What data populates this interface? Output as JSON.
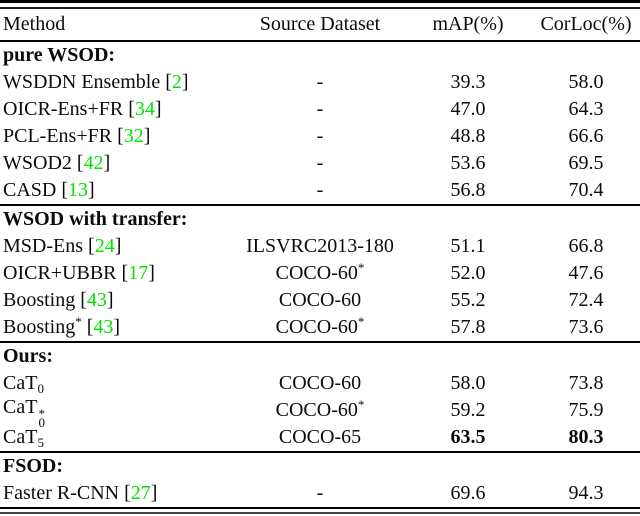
{
  "accent_colors": {
    "citation_green": "#00e400",
    "text": "#0b0b0b",
    "rule": "#000000"
  },
  "header": {
    "columns": [
      "Method",
      "Source Dataset",
      "mAP(%)",
      "CorLoc(%)"
    ]
  },
  "sections": [
    {
      "title": "pure WSOD:",
      "rows": [
        {
          "method": {
            "text": "WSDDN Ensemble",
            "cite": "2"
          },
          "source": {
            "text": "-"
          },
          "map": "39.3",
          "corloc": "58.0"
        },
        {
          "method": {
            "text": "OICR-Ens+FR",
            "cite": "34"
          },
          "source": {
            "text": "-"
          },
          "map": "47.0",
          "corloc": "64.3"
        },
        {
          "method": {
            "text": "PCL-Ens+FR",
            "cite": "32"
          },
          "source": {
            "text": "-"
          },
          "map": "48.8",
          "corloc": "66.6"
        },
        {
          "method": {
            "text": "WSOD2",
            "cite": "42"
          },
          "source": {
            "text": "-"
          },
          "map": "53.6",
          "corloc": "69.5"
        },
        {
          "method": {
            "text": "CASD",
            "cite": "13"
          },
          "source": {
            "text": "-"
          },
          "map": "56.8",
          "corloc": "70.4"
        }
      ]
    },
    {
      "title": "WSOD with transfer:",
      "rows": [
        {
          "method": {
            "text": "MSD-Ens",
            "cite": "24"
          },
          "source": {
            "text": "ILSVRC2013-180"
          },
          "map": "51.1",
          "corloc": "66.8"
        },
        {
          "method": {
            "text": "OICR+UBBR",
            "cite": "17"
          },
          "source": {
            "text": "COCO-60",
            "sup": "*"
          },
          "map": "52.0",
          "corloc": "47.6"
        },
        {
          "method": {
            "text": "Boosting",
            "cite": "43"
          },
          "source": {
            "text": "COCO-60"
          },
          "map": "55.2",
          "corloc": "72.4"
        },
        {
          "method": {
            "text": "Boosting",
            "sup": "*",
            "cite": "43"
          },
          "source": {
            "text": "COCO-60",
            "sup": "*"
          },
          "map": "57.8",
          "corloc": "73.6"
        }
      ]
    },
    {
      "title": "Ours:",
      "rows": [
        {
          "method": {
            "text": "CaT",
            "sub": "0"
          },
          "source": {
            "text": "COCO-60"
          },
          "map": "58.0",
          "corloc": "73.8"
        },
        {
          "method": {
            "text": "CaT",
            "sub": "0",
            "sup": "*"
          },
          "source": {
            "text": "COCO-60",
            "sup": "*"
          },
          "map": "59.2",
          "corloc": "75.9"
        },
        {
          "method": {
            "text": "CaT",
            "sub": "5"
          },
          "source": {
            "text": "COCO-65"
          },
          "map": "63.5",
          "corloc": "80.3",
          "bold_metrics": true
        }
      ]
    },
    {
      "title": "FSOD:",
      "rows": [
        {
          "method": {
            "text": "Faster R-CNN",
            "cite": "27"
          },
          "source": {
            "text": "-"
          },
          "map": "69.6",
          "corloc": "94.3"
        }
      ]
    }
  ]
}
